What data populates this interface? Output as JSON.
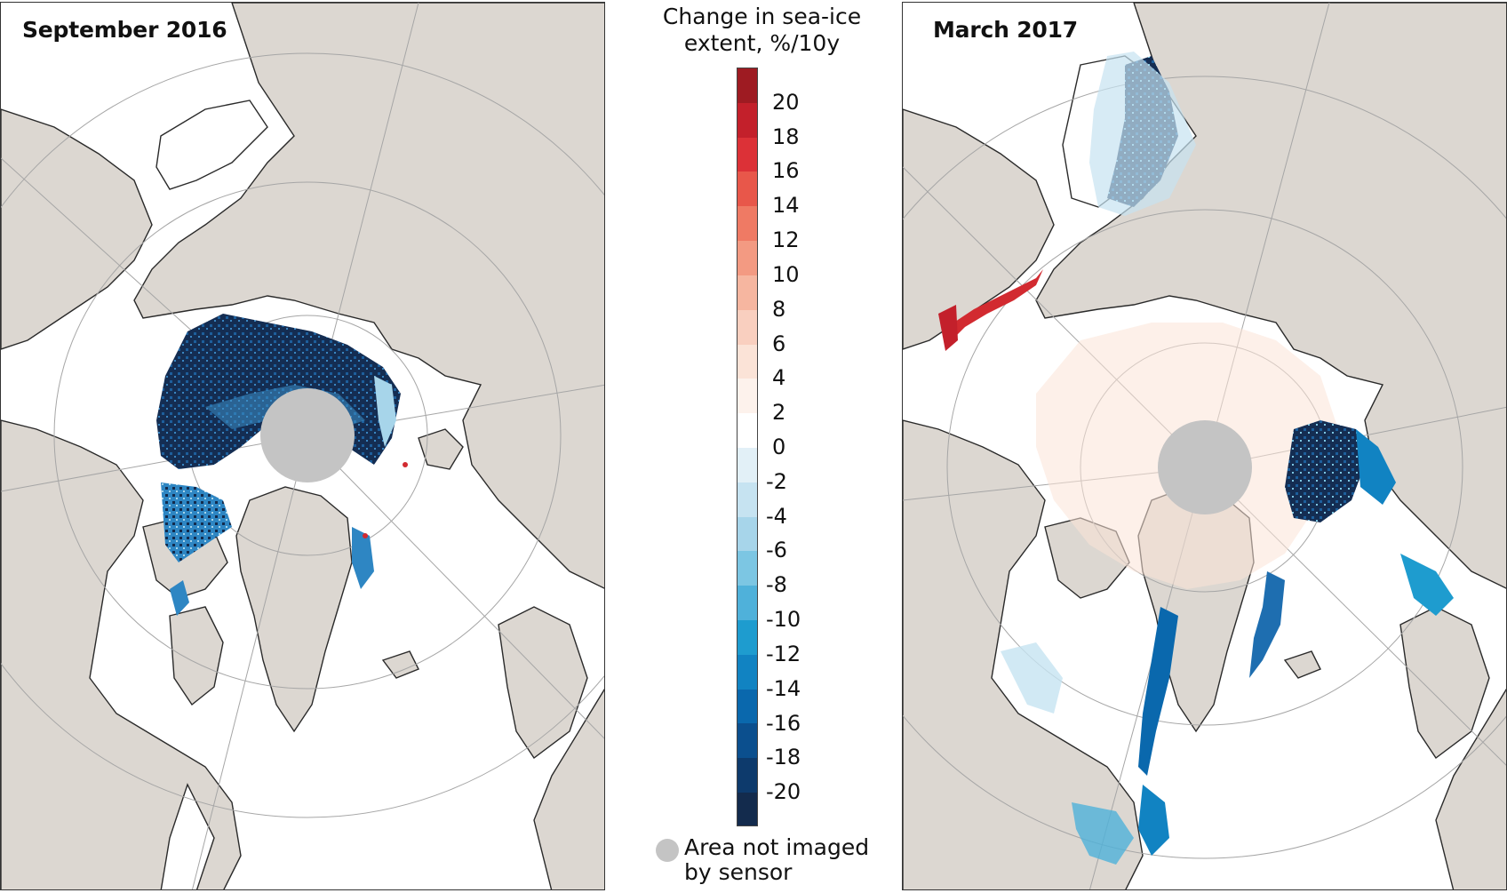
{
  "panels": {
    "left": {
      "title": "September 2016"
    },
    "right": {
      "title": "March 2017"
    }
  },
  "legend": {
    "title_line1": "Change in sea-ice",
    "title_line2": "extent, %/10y",
    "unit": "%/10y",
    "tick_labels": [
      "20",
      "18",
      "16",
      "14",
      "12",
      "10",
      "8",
      "6",
      "4",
      "2",
      "0",
      "-2",
      "-4",
      "-6",
      "-8",
      "-10",
      "-12",
      "-14",
      "-16",
      "-18",
      "-20"
    ],
    "swatches": [
      "#9e1b22",
      "#c3202b",
      "#dc3137",
      "#e8574a",
      "#ef7a64",
      "#f39a82",
      "#f6b6a0",
      "#f9cfbf",
      "#fbe3d7",
      "#fdf2ec",
      "#ffffff",
      "#e2f0f7",
      "#c6e3f1",
      "#a7d5ea",
      "#7cc6e3",
      "#4fb1da",
      "#1e9ccf",
      "#1183c2",
      "#0a68ad",
      "#0b4f8e",
      "#0d3a6c",
      "#132b4d"
    ],
    "nodata_label_line1": "Area not imaged",
    "nodata_label_line2": "by sensor"
  },
  "colors": {
    "land": "#dcd7d1",
    "ocean": "#ffffff",
    "coast": "#2a2a2a",
    "graticule": "#a6a6a6",
    "nodata": "#c4c4c4",
    "decline_dark": "#132b4d",
    "decline_mid": "#1e6eb0",
    "decline_light": "#a7d5ea",
    "increase": "#d22a30",
    "increase_light": "#fbe3d7"
  }
}
